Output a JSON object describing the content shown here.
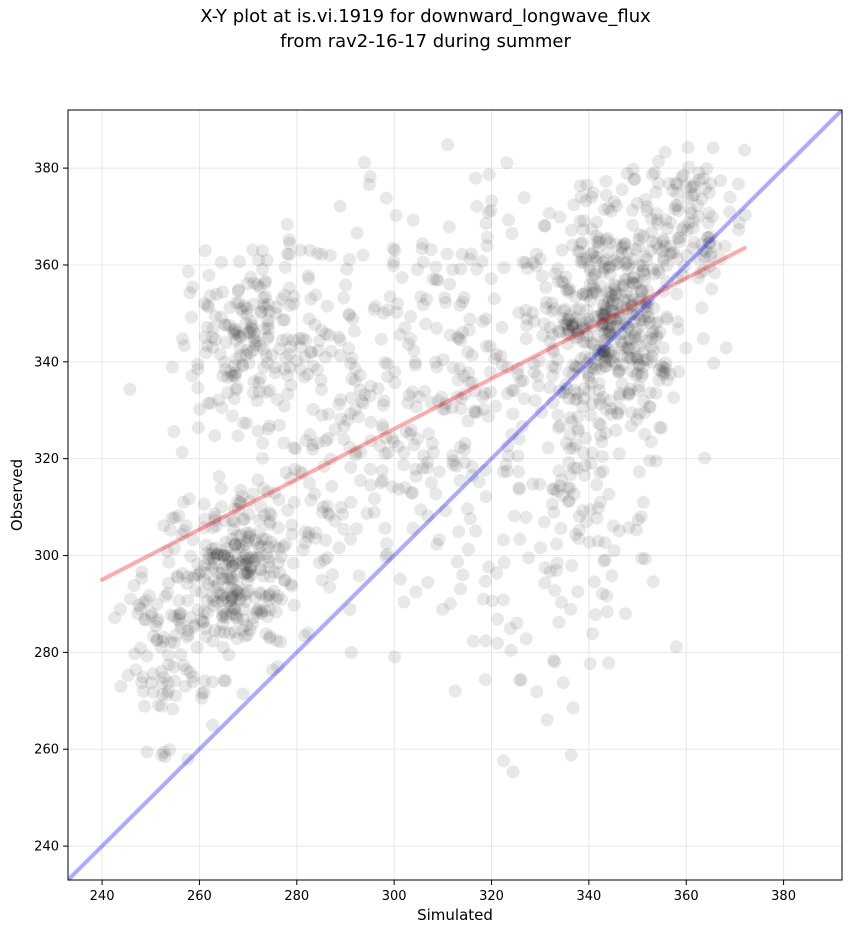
{
  "chart_data": {
    "type": "scatter",
    "title_line1": "X-Y plot at is.vi.1919 for downward_longwave_flux",
    "title_line2": "from rav2-16-17 during summer",
    "xlabel": "Simulated",
    "ylabel": "Observed",
    "xlim": [
      233,
      392
    ],
    "ylim": [
      233,
      392
    ],
    "xticks": [
      240,
      260,
      280,
      300,
      320,
      340,
      360,
      380
    ],
    "yticks": [
      240,
      260,
      280,
      300,
      320,
      340,
      360,
      380
    ],
    "grid": true,
    "point_color": "#000000",
    "point_opacity": 0.09,
    "identity_line": {
      "color": "#0000ff",
      "x": [
        233,
        392
      ],
      "y": [
        233,
        392
      ]
    },
    "fit_line": {
      "color": "#ff0000",
      "x": [
        240,
        372
      ],
      "y": [
        295,
        363.5
      ]
    },
    "clusters": [
      {
        "cx": 345,
        "cy": 350,
        "sx": 7,
        "sy": 11,
        "n": 420
      },
      {
        "cx": 268,
        "cy": 296,
        "sx": 6,
        "sy": 8,
        "n": 260
      },
      {
        "cx": 270,
        "cy": 345,
        "sx": 6,
        "sy": 9,
        "n": 160
      },
      {
        "cx": 292,
        "cy": 330,
        "sx": 14,
        "sy": 20,
        "n": 300
      },
      {
        "cx": 253,
        "cy": 282,
        "sx": 5,
        "sy": 13,
        "n": 110
      },
      {
        "cx": 340,
        "cy": 315,
        "sx": 7,
        "sy": 16,
        "n": 130
      },
      {
        "cx": 360,
        "cy": 370,
        "sx": 6,
        "sy": 7,
        "n": 110
      },
      {
        "cx": 318,
        "cy": 345,
        "sx": 12,
        "sy": 18,
        "n": 150
      },
      {
        "cx": 322,
        "cy": 290,
        "sx": 10,
        "sy": 18,
        "n": 50
      }
    ]
  }
}
